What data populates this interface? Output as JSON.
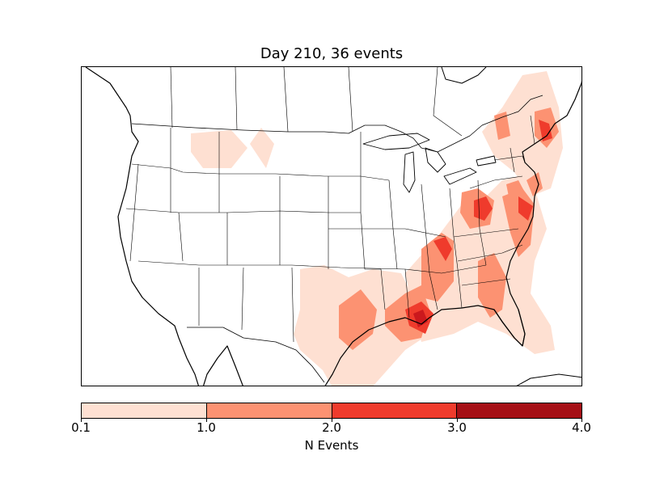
{
  "title": "Day 210, 36 events",
  "colorbar": {
    "label": "N Events",
    "ticks": [
      "0.1",
      "1.0",
      "2.0",
      "3.0",
      "4.0"
    ],
    "colors": [
      "#fee0d2",
      "#fc9272",
      "#ef3b2c",
      "#cb181d",
      "#a50f15"
    ]
  },
  "map": {
    "projection": "lambert-conformal",
    "region": "North America (contiguous US focus)",
    "boundaries": [
      "coastlines",
      "countries",
      "states"
    ],
    "contour_levels": [
      0.1,
      1.0,
      2.0,
      3.0,
      4.0
    ]
  }
}
